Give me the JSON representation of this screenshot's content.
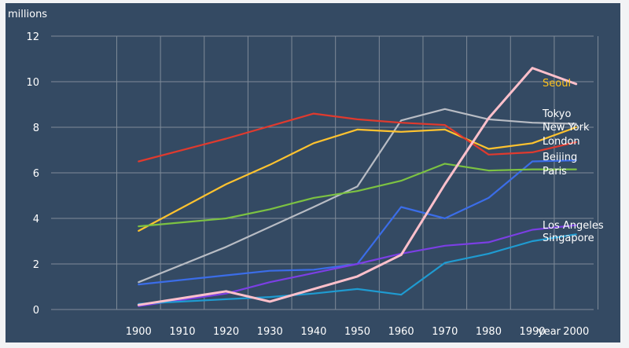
{
  "chart_data": {
    "type": "line",
    "title": "",
    "ylabel": "millions",
    "xlabel": "year",
    "x": [
      1900,
      1910,
      1920,
      1930,
      1940,
      1950,
      1960,
      1970,
      1980,
      1990,
      2000
    ],
    "xlim": [
      1880,
      2004
    ],
    "ylim": [
      0,
      12
    ],
    "yticks": [
      0,
      2,
      4,
      6,
      8,
      10,
      12
    ],
    "grid": true,
    "legend": "right-side labels",
    "series": [
      {
        "name": "Seoul",
        "color": "#ffc21c",
        "highlight": true,
        "points": [
          [
            1900,
            0.2
          ],
          [
            1920,
            0.8
          ],
          [
            1930,
            0.35
          ],
          [
            1950,
            1.45
          ],
          [
            1960,
            2.4
          ],
          [
            1970,
            5.5
          ],
          [
            1980,
            8.4
          ],
          [
            1990,
            10.6
          ],
          [
            2000,
            9.9
          ]
        ],
        "line_color": "#ffc0cb"
      },
      {
        "name": "Tokyo",
        "color": "#ffffff",
        "points": [
          [
            1900,
            1.2
          ],
          [
            1920,
            2.75
          ],
          [
            1940,
            4.5
          ],
          [
            1950,
            5.4
          ],
          [
            1960,
            8.3
          ],
          [
            1970,
            8.8
          ],
          [
            1980,
            8.35
          ],
          [
            1990,
            8.2
          ],
          [
            2000,
            8.15
          ]
        ],
        "line_color": "#b8bcc4"
      },
      {
        "name": "New York",
        "color": "#ffffff",
        "points": [
          [
            1900,
            3.45
          ],
          [
            1920,
            5.5
          ],
          [
            1930,
            6.35
          ],
          [
            1940,
            7.3
          ],
          [
            1950,
            7.9
          ],
          [
            1960,
            7.8
          ],
          [
            1970,
            7.9
          ],
          [
            1980,
            7.05
          ],
          [
            1990,
            7.3
          ],
          [
            2000,
            8.0
          ]
        ],
        "line_color": "#ffc32f"
      },
      {
        "name": "London",
        "color": "#ffffff",
        "points": [
          [
            1900,
            6.5
          ],
          [
            1920,
            7.5
          ],
          [
            1940,
            8.6
          ],
          [
            1950,
            8.35
          ],
          [
            1960,
            8.2
          ],
          [
            1970,
            8.1
          ],
          [
            1980,
            6.8
          ],
          [
            1990,
            6.9
          ],
          [
            2000,
            7.35
          ]
        ],
        "line_color": "#e03a2e"
      },
      {
        "name": "Beijing",
        "color": "#ffffff",
        "points": [
          [
            1900,
            1.1
          ],
          [
            1920,
            1.5
          ],
          [
            1930,
            1.7
          ],
          [
            1940,
            1.75
          ],
          [
            1950,
            2.0
          ],
          [
            1960,
            4.5
          ],
          [
            1970,
            4.0
          ],
          [
            1980,
            4.9
          ],
          [
            1990,
            6.5
          ],
          [
            2000,
            6.55
          ]
        ],
        "line_color": "#3b6de8"
      },
      {
        "name": "Paris",
        "color": "#ffffff",
        "points": [
          [
            1900,
            3.65
          ],
          [
            1920,
            4.0
          ],
          [
            1930,
            4.4
          ],
          [
            1940,
            4.9
          ],
          [
            1950,
            5.2
          ],
          [
            1960,
            5.65
          ],
          [
            1970,
            6.4
          ],
          [
            1980,
            6.1
          ],
          [
            1990,
            6.15
          ],
          [
            2000,
            6.15
          ]
        ],
        "line_color": "#7cc242"
      },
      {
        "name": "Los Angeles",
        "color": "#ffffff",
        "points": [
          [
            1900,
            0.15
          ],
          [
            1920,
            0.7
          ],
          [
            1930,
            1.2
          ],
          [
            1940,
            1.6
          ],
          [
            1950,
            2.0
          ],
          [
            1960,
            2.45
          ],
          [
            1970,
            2.8
          ],
          [
            1980,
            2.95
          ],
          [
            1990,
            3.5
          ],
          [
            2000,
            3.7
          ]
        ],
        "line_color": "#7b3fe4"
      },
      {
        "name": "Singapore",
        "color": "#ffffff",
        "points": [
          [
            1900,
            0.25
          ],
          [
            1920,
            0.45
          ],
          [
            1930,
            0.55
          ],
          [
            1940,
            0.7
          ],
          [
            1950,
            0.9
          ],
          [
            1960,
            0.65
          ],
          [
            1970,
            2.05
          ],
          [
            1980,
            2.45
          ],
          [
            1990,
            3.0
          ],
          [
            2000,
            3.3
          ]
        ],
        "line_color": "#1f9bd1"
      }
    ]
  },
  "colors": {
    "background": "#344a63",
    "grid": "#7f8b99",
    "axis_text": "#ffffff"
  }
}
